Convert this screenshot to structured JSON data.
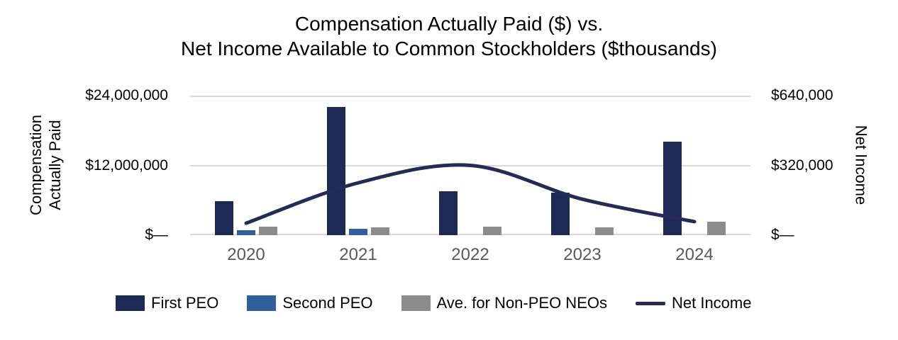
{
  "title": {
    "line1": "Compensation Actually Paid ($) vs.",
    "line2": "Net Income Available to Common Stockholders ($thousands)"
  },
  "chart_data": {
    "type": "bar",
    "subtype": "grouped-bars-with-line-dual-axis",
    "categories": [
      "2020",
      "2021",
      "2022",
      "2023",
      "2024"
    ],
    "series": [
      {
        "name": "First PEO",
        "type": "bar",
        "axis": "left",
        "color": "#1e2a56",
        "values": [
          5900000,
          22000000,
          7600000,
          7300000,
          16100000
        ]
      },
      {
        "name": "Second PEO",
        "type": "bar",
        "axis": "left",
        "color": "#2f5f9e",
        "values": [
          800000,
          1150000,
          0,
          0,
          0
        ]
      },
      {
        "name": "Ave. for Non-PEO NEOs",
        "type": "bar",
        "axis": "left",
        "color": "#8c8c8c",
        "values": [
          1500000,
          1300000,
          1500000,
          1300000,
          2300000
        ]
      },
      {
        "name": "Net Income",
        "type": "line",
        "axis": "right",
        "color": "#252b57",
        "values": [
          55000,
          240000,
          320000,
          165000,
          62000
        ]
      }
    ],
    "left_axis": {
      "title_line1": "Compensation",
      "title_line2": "Actually Paid",
      "max": 24000000,
      "ticks": [
        {
          "label": "$—",
          "value": 0
        },
        {
          "label": "$12,000,000",
          "value": 12000000
        },
        {
          "label": "$24,000,000",
          "value": 24000000
        }
      ]
    },
    "right_axis": {
      "title": "Net Income",
      "max": 640000,
      "ticks": [
        {
          "label": "$—",
          "value": 0
        },
        {
          "label": "$320,000",
          "value": 320000
        },
        {
          "label": "$640,000",
          "value": 640000
        }
      ]
    },
    "grid": true,
    "legend_position": "bottom"
  },
  "colors": {
    "gridline": "#d9d9d9",
    "x_label": "#595959",
    "tick_label": "#000000",
    "title": "#000000",
    "background": "#ffffff"
  }
}
